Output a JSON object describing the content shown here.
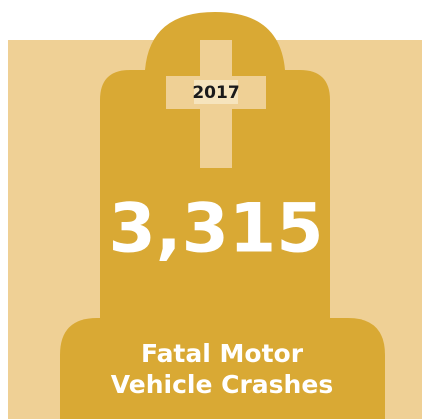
{
  "year": "2017",
  "count": "3,315",
  "caption": [
    "Fatal Motor",
    "Vehicle Crashes"
  ]
}
